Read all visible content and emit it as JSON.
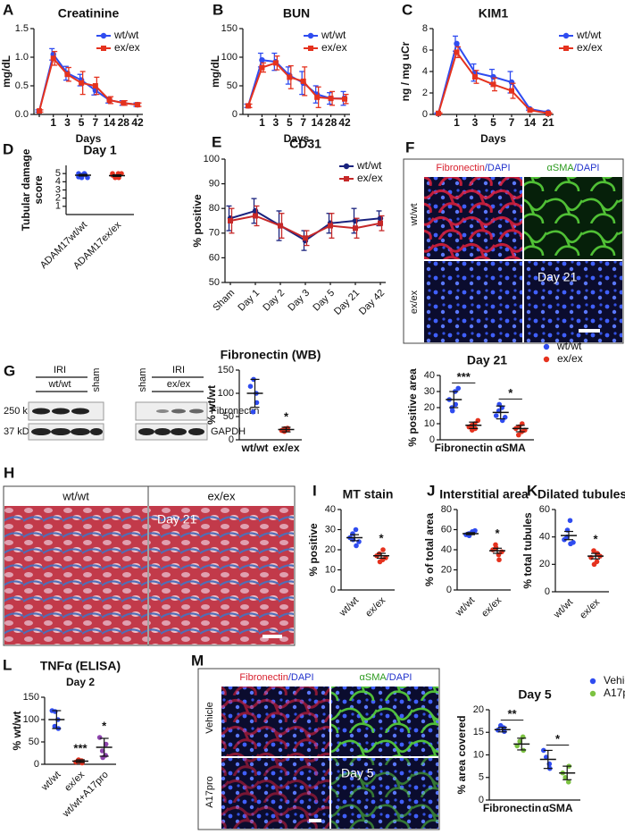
{
  "chart_data": [
    {
      "type": "line",
      "letter": "A",
      "title": "Creatinine",
      "ylabel": "mg/dL",
      "xlabel": "Days",
      "categories": [
        null,
        "1",
        "3",
        "5",
        "7",
        "14",
        "28",
        "42"
      ],
      "ylim": [
        0,
        1.5
      ],
      "yticks": [
        {
          "value": 0,
          "label": "0.0"
        },
        0.5,
        {
          "value": 1,
          "label": "1.0"
        },
        1.5
      ],
      "legend": "upper right",
      "series": [
        {
          "name": "wt/wt",
          "color": "#2f4cf0",
          "marker": "circle",
          "values": [
            0.06,
            1.05,
            0.72,
            0.6,
            0.42,
            0.25,
            0.2,
            0.17
          ],
          "errors": [
            0.02,
            0.1,
            0.12,
            0.1,
            0.08,
            0.05,
            0.04,
            0.03
          ]
        },
        {
          "name": "ex/ex",
          "color": "#e5321e",
          "marker": "square",
          "values": [
            0.06,
            0.98,
            0.7,
            0.55,
            0.5,
            0.25,
            0.2,
            0.17
          ],
          "errors": [
            0.02,
            0.12,
            0.12,
            0.2,
            0.15,
            0.06,
            0.04,
            0.03
          ]
        }
      ]
    },
    {
      "type": "line",
      "letter": "B",
      "title": "BUN",
      "ylabel": "mg/dL",
      "xlabel": "Days",
      "categories": [
        null,
        "1",
        "3",
        "5",
        "7",
        "14",
        "28",
        "42"
      ],
      "ylim": [
        0,
        150
      ],
      "yticks": [
        0,
        50,
        100,
        150
      ],
      "legend": "upper right",
      "series": [
        {
          "name": "wt/wt",
          "color": "#2f4cf0",
          "marker": "circle",
          "values": [
            15,
            95,
            92,
            68,
            55,
            35,
            28,
            28
          ],
          "errors": [
            3,
            12,
            15,
            15,
            20,
            15,
            10,
            12
          ]
        },
        {
          "name": "ex/ex",
          "color": "#e5321e",
          "marker": "square",
          "values": [
            15,
            82,
            90,
            65,
            58,
            30,
            28,
            27
          ],
          "errors": [
            3,
            8,
            12,
            20,
            25,
            18,
            12,
            8
          ]
        }
      ]
    },
    {
      "type": "line",
      "letter": "C",
      "title": "KIM1",
      "ylabel": "ng / mg uCr",
      "xlabel": "Days",
      "categories": [
        null,
        "1",
        "3",
        "5",
        "7",
        "14",
        "21"
      ],
      "ylim": [
        0,
        8
      ],
      "yticks": [
        0,
        2,
        4,
        6,
        8
      ],
      "legend": "outside right",
      "series": [
        {
          "name": "wt/wt",
          "color": "#2f4cf0",
          "marker": "circle",
          "values": [
            0.1,
            6.6,
            3.9,
            3.5,
            3.0,
            0.5,
            0.2
          ],
          "errors": [
            0.05,
            0.7,
            0.8,
            0.7,
            1.0,
            0.1,
            0.1
          ]
        },
        {
          "name": "ex/ex",
          "color": "#e5321e",
          "marker": "square",
          "values": [
            0.1,
            5.8,
            3.5,
            2.8,
            2.2,
            0.4,
            0.1
          ],
          "errors": [
            0.05,
            0.5,
            0.6,
            0.6,
            0.7,
            0.1,
            0.05
          ]
        }
      ]
    },
    {
      "type": "dot",
      "letter": "D",
      "title": "Day 1",
      "ylabel": [
        "Tubular damage",
        "score"
      ],
      "categories": [
        "ADAM17wt/wt",
        "ADAM17ex/ex"
      ],
      "xtick_rotation": 45,
      "ylim": [
        0,
        6
      ],
      "yticks": [
        1,
        2,
        3,
        4,
        5
      ],
      "colors": [
        "#2f4cf0",
        "#e5321e"
      ],
      "values": [
        [
          5,
          5,
          4.9,
          4.8,
          4.5,
          4.5,
          4.6,
          5
        ],
        [
          5,
          4.8,
          4.5,
          4.5,
          4.6,
          5,
          4.8,
          5
        ]
      ],
      "mean": [
        4.8,
        4.75
      ],
      "error": [
        0.1,
        0.1
      ]
    },
    {
      "type": "line",
      "letter": "E",
      "title": "CD31",
      "ylabel": "% positive",
      "categories": [
        "Sham",
        "Day 1",
        "Day 2",
        "Day 3",
        "Day 5",
        "Day 21",
        "Day 42"
      ],
      "xtick_rotation": 45,
      "ylim": [
        50,
        100
      ],
      "yticks": [
        50,
        60,
        70,
        80,
        90,
        100
      ],
      "legend": "upper right",
      "series": [
        {
          "name": "wt/wt",
          "color": "#1a237e",
          "marker": "circle",
          "values": [
            76,
            79,
            73,
            67,
            74,
            75,
            76
          ],
          "errors": [
            5,
            5,
            6,
            4,
            4,
            5,
            3
          ]
        },
        {
          "name": "ex/ex",
          "color": "#c62828",
          "marker": "square",
          "values": [
            75,
            77,
            73,
            68,
            73,
            72,
            74
          ],
          "errors": [
            5,
            4,
            5,
            3,
            5,
            4,
            3
          ]
        }
      ]
    },
    {
      "type": "dot",
      "title": "Fibronectin (WB)",
      "ylabel": "% wt/wt",
      "categories": [
        "wt/wt",
        "ex/ex"
      ],
      "xtick_rotation": 0,
      "ylim": [
        0,
        150
      ],
      "yticks": [
        0,
        50,
        100,
        150
      ],
      "colors": [
        "#2f4cf0",
        "#e5321e"
      ],
      "values": [
        [
          115,
          100,
          80,
          60,
          130
        ],
        [
          20,
          25,
          22,
          18,
          24
        ]
      ],
      "mean": [
        100,
        22
      ],
      "error": [
        30,
        5
      ],
      "sig": [
        null,
        "*"
      ]
    },
    {
      "type": "dot",
      "title": "Day 21",
      "ylabel": "% positive area",
      "categories": [
        "Fibronectin",
        "αSMA"
      ],
      "xtick_rotation": 0,
      "ylim": [
        0,
        40
      ],
      "yticks": [
        0,
        10,
        20,
        30,
        40
      ],
      "legend": "outside top right",
      "sig": [
        "***",
        "*"
      ],
      "series": [
        {
          "name": "wt/wt",
          "color": "#2f4cf0",
          "values": [
            [
              25,
              30,
              22,
              20,
              18,
              32
            ],
            [
              15,
              20,
              12,
              18,
              22,
              14
            ]
          ],
          "mean": [
            25,
            17
          ],
          "error": [
            5,
            4
          ]
        },
        {
          "name": "ex/ex",
          "color": "#e5321e",
          "values": [
            [
              8,
              10,
              7,
              9,
              6,
              12
            ],
            [
              7,
              5,
              10,
              3,
              8,
              6
            ]
          ],
          "mean": [
            9,
            7
          ],
          "error": [
            2,
            2
          ]
        }
      ]
    },
    {
      "type": "dot",
      "letter": "I",
      "title": "MT stain",
      "ylabel": "% positive",
      "categories": [
        "wt/wt",
        "ex/ex"
      ],
      "xtick_rotation": 45,
      "ylim": [
        0,
        40
      ],
      "yticks": [
        0,
        10,
        20,
        30,
        40
      ],
      "colors": [
        "#2f4cf0",
        "#e5321e"
      ],
      "values": [
        [
          26,
          30,
          22,
          28,
          25,
          24
        ],
        [
          17,
          15,
          20,
          18,
          14,
          16
        ]
      ],
      "mean": [
        26,
        17
      ],
      "error": [
        1.5,
        1.2
      ],
      "sig": [
        null,
        "*"
      ]
    },
    {
      "type": "dot",
      "letter": "J",
      "title": "Interstitial area",
      "ylabel": "% of total area",
      "categories": [
        "wt/wt",
        "ex/ex"
      ],
      "xtick_rotation": 45,
      "ylim": [
        0,
        80
      ],
      "yticks": [
        0,
        20,
        40,
        60,
        80
      ],
      "colors": [
        "#2f4cf0",
        "#e5321e"
      ],
      "values": [
        [
          55,
          57,
          58,
          56,
          54,
          59
        ],
        [
          40,
          35,
          30,
          45,
          42,
          38
        ]
      ],
      "mean": [
        56,
        39
      ],
      "error": [
        1,
        2.5
      ],
      "sig": [
        null,
        "*"
      ]
    },
    {
      "type": "dot",
      "letter": "K",
      "title": "Dilated tubules",
      "ylabel": "% total tubules",
      "categories": [
        "wt/wt",
        "ex/ex"
      ],
      "xtick_rotation": 45,
      "ylim": [
        0,
        60
      ],
      "yticks": [
        0,
        20,
        40,
        60
      ],
      "colors": [
        "#2f4cf0",
        "#e5321e"
      ],
      "values": [
        [
          38,
          52,
          35,
          40,
          45,
          36
        ],
        [
          25,
          22,
          28,
          30,
          20,
          26
        ]
      ],
      "mean": [
        41,
        26
      ],
      "error": [
        3,
        2
      ],
      "sig": [
        null,
        "*"
      ]
    },
    {
      "type": "dot",
      "letter": "L",
      "title": "TNFα (ELISA)",
      "subtitle": "Day 2",
      "ylabel": "% wt/wt",
      "categories": [
        "wt/wt",
        "ex/ex",
        "wt/wt+A17pro"
      ],
      "xtick_rotation": 45,
      "ylim": [
        0,
        150
      ],
      "yticks": [
        0,
        50,
        100,
        150
      ],
      "colors": [
        "#2f4cf0",
        "#e5321e",
        "#8e44ad"
      ],
      "values": [
        [
          120,
          100,
          80,
          85,
          118
        ],
        [
          5,
          8,
          3,
          10,
          7
        ],
        [
          60,
          20,
          45,
          30,
          15
        ]
      ],
      "mean": [
        100,
        7,
        38
      ],
      "error": [
        20,
        3,
        20
      ],
      "sig": [
        null,
        "***",
        "*"
      ]
    },
    {
      "type": "dot",
      "title": "Day 5",
      "ylabel": "% area covered",
      "categories": [
        "Fibronectin",
        "αSMA"
      ],
      "xtick_rotation": 0,
      "ylim": [
        0,
        20
      ],
      "yticks": [
        0,
        5,
        10,
        15,
        20
      ],
      "legend": "outside top right",
      "sig": [
        "**",
        "*"
      ],
      "series": [
        {
          "name": "Vehicle",
          "color": "#2f4cf0",
          "values": [
            [
              15.5,
              16,
              15.2,
              16.5
            ],
            [
              11,
              8,
              7,
              9.5
            ]
          ],
          "mean": [
            15.6,
            9
          ],
          "error": [
            0.5,
            2
          ]
        },
        {
          "name": "A17pro",
          "color": "#7cc242",
          "values": [
            [
              12,
              14,
              11,
              13
            ],
            [
              6,
              4,
              7.5,
              5
            ]
          ],
          "mean": [
            12.4,
            6
          ],
          "error": [
            1.3,
            1.5
          ]
        }
      ]
    }
  ],
  "images": [
    {
      "letter": "F",
      "columns": [
        [
          "Fibronectin",
          "/DAPI"
        ],
        [
          "αSMA",
          "/DAPI"
        ]
      ],
      "rows": [
        "wt/wt",
        "ex/ex"
      ],
      "label": "Day 21"
    },
    {
      "letter": "G",
      "groups": [
        "IRI",
        "wt/wt",
        "sham",
        "sham",
        "IRI",
        "ex/ex"
      ],
      "markers": [
        "250 kD",
        "37 kD"
      ],
      "bands": [
        "Fibronectin",
        "GAPDH"
      ]
    },
    {
      "letter": "H",
      "columns": [
        "wt/wt",
        "ex/ex"
      ],
      "label": "Day 21"
    },
    {
      "letter": "M",
      "columns": [
        [
          "Fibronectin",
          "/DAPI"
        ],
        [
          "αSMA",
          "/DAPI"
        ]
      ],
      "rows": [
        "Vehicle",
        "A17pro"
      ],
      "label": "Day 5"
    }
  ]
}
